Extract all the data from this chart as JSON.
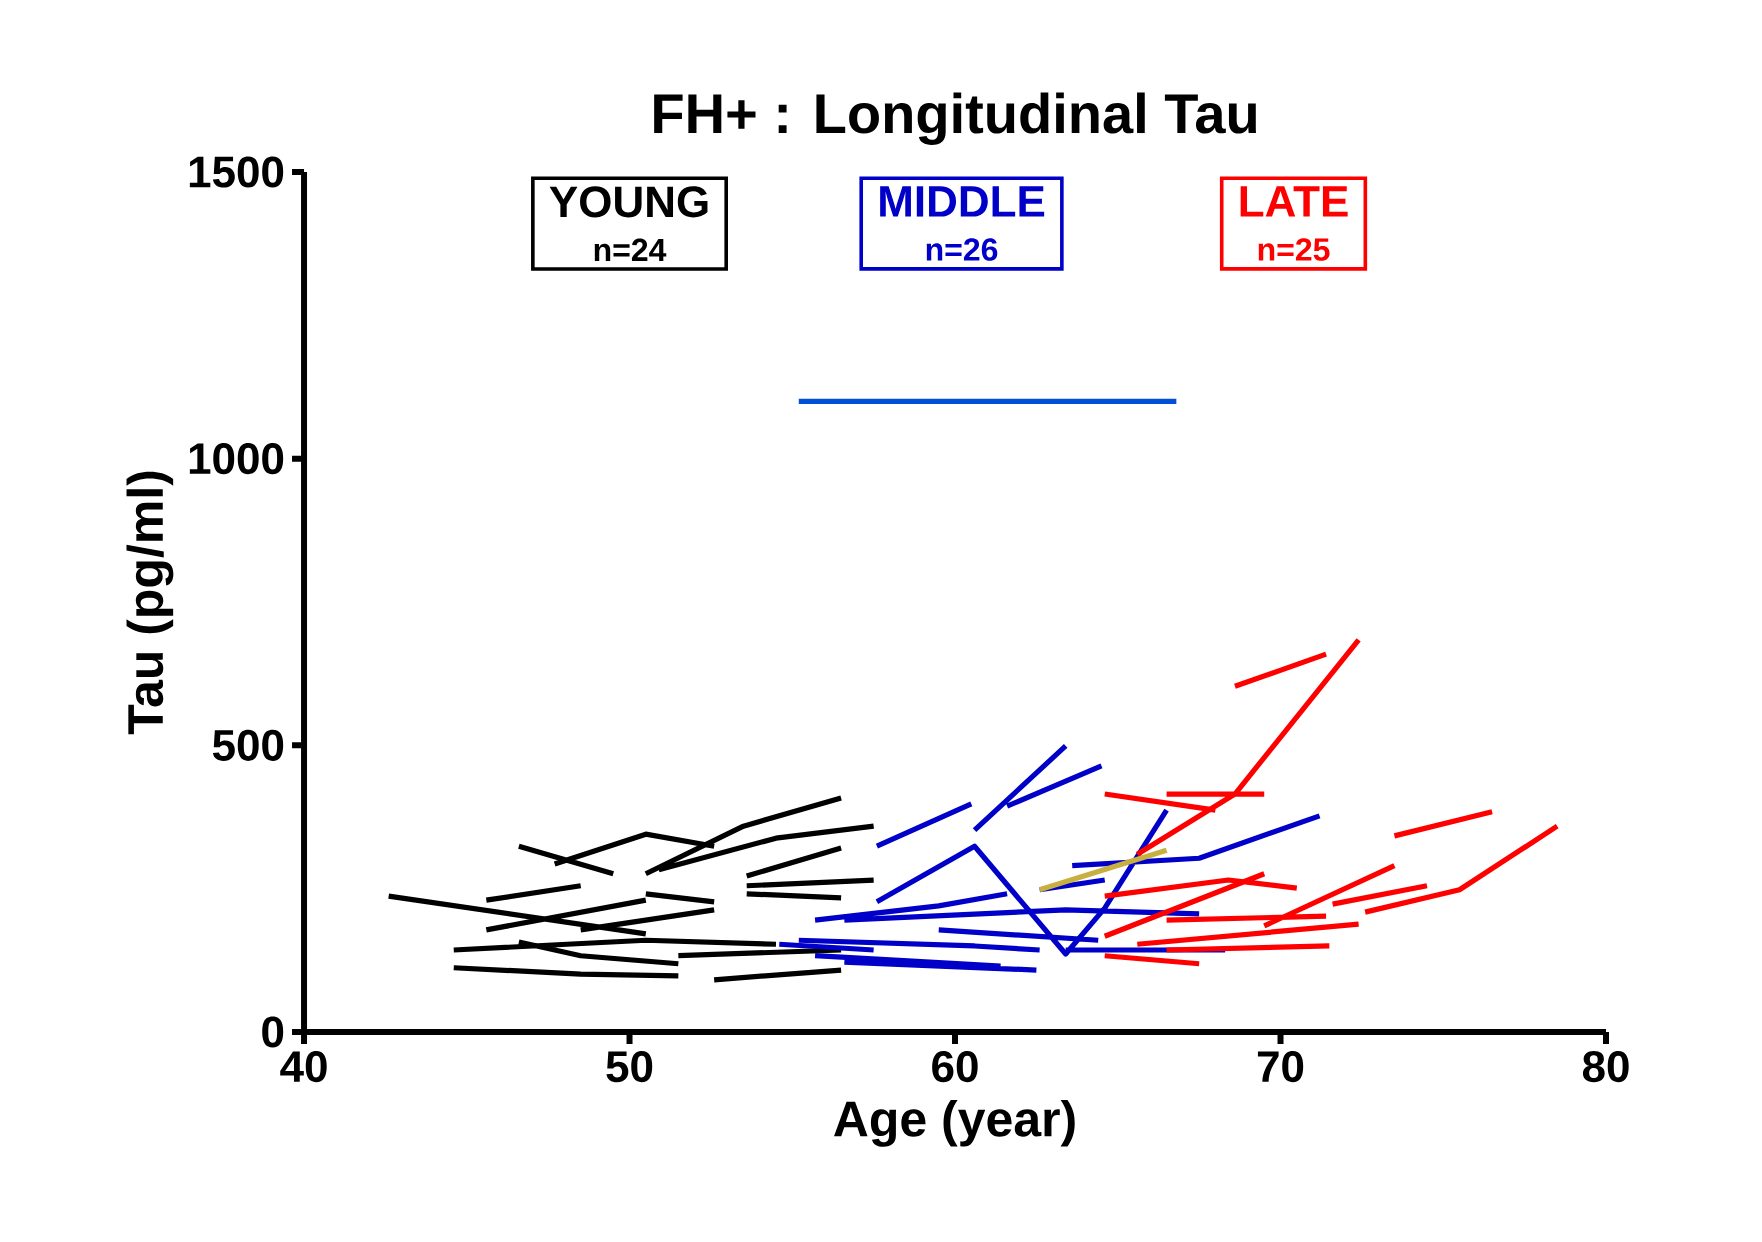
{
  "chart_data": {
    "type": "line",
    "title": "FH+ : Longitudinal Tau",
    "xlabel": "Age (year)",
    "ylabel": "Tau (pg/ml)",
    "xlim": [
      40,
      80
    ],
    "ylim": [
      0,
      1500
    ],
    "xticks": [
      40,
      50,
      60,
      70,
      80
    ],
    "yticks": [
      0,
      500,
      1000,
      1500
    ],
    "grid": false,
    "marker": "none",
    "line_style": "solid",
    "annotations": [
      "n=24",
      "n=26",
      "n=25"
    ],
    "series": [
      {
        "name": "YOUNG",
        "color": "#000000",
        "x": [
          42.6,
          50.5,
          null,
          46.6,
          49.5,
          null,
          47.7,
          50.5,
          52.6,
          null,
          50.5,
          53.5,
          56.5,
          null,
          50.9,
          54.5,
          57.5,
          null,
          45.6,
          48.5,
          null,
          50.5,
          52.6,
          null,
          53.6,
          56.5,
          null,
          53.6,
          57.5,
          null,
          45.6,
          50.5,
          null,
          48.5,
          52.6,
          null,
          44.6,
          50.5,
          54.5,
          null,
          44.6,
          48.5,
          51.5,
          null,
          46.6,
          48.5,
          51.5,
          null,
          51.5,
          56.5,
          null,
          52.6,
          56.5
        ],
        "values": [
          237,
          171,
          null,
          324,
          276,
          null,
          293,
          345,
          324,
          null,
          276,
          359,
          408,
          null,
          283,
          338,
          359,
          null,
          230,
          255,
          null,
          241,
          227,
          null,
          241,
          234,
          null,
          255,
          265,
          null,
          178,
          230,
          null,
          178,
          213,
          null,
          143,
          160,
          153,
          null,
          112,
          101,
          98,
          null,
          157,
          133,
          119,
          null,
          133,
          143,
          null,
          91,
          108
        ]
      },
      {
        "name": "MIDDLE",
        "color": "#0000c8",
        "x": [
          57.6,
          60.5,
          null,
          60.6,
          63.4,
          null,
          61.6,
          64.5,
          null,
          57.6,
          60.6,
          62.0,
          63.4,
          64.6,
          66.5,
          null,
          63.6,
          67.5,
          71.2,
          null,
          55.7,
          59.5,
          61.6,
          null,
          62.6,
          64.6,
          null,
          55.2,
          60.6,
          62.6,
          null,
          56.6,
          63.4,
          67.5,
          null,
          55.7,
          61.4,
          null,
          59.5,
          64.4,
          null,
          56.6,
          62.5,
          null,
          63.4,
          68.3,
          null,
          54.6,
          57.5
        ],
        "values": [
          324,
          398,
          null,
          352,
          499,
          null,
          394,
          464,
          null,
          227,
          324,
          230,
          136,
          216,
          387,
          null,
          290,
          303,
          377,
          null,
          195,
          220,
          241,
          null,
          248,
          265,
          null,
          160,
          150,
          143,
          null,
          195,
          213,
          206,
          null,
          133,
          115,
          null,
          178,
          160,
          null,
          122,
          108,
          null,
          143,
          143,
          null,
          153,
          143
        ]
      },
      {
        "name": "LATE",
        "color": "#ff0000",
        "x": [
          68.6,
          71.4,
          null,
          65.6,
          68.6,
          72.4,
          null,
          64.6,
          68.0,
          null,
          66.5,
          69.5,
          null,
          73.5,
          76.5,
          null,
          72.6,
          75.5,
          78.5,
          null,
          71.6,
          74.5,
          null,
          69.5,
          73.5,
          null,
          64.6,
          68.4,
          70.5,
          null,
          64.6,
          69.5,
          null,
          65.6,
          72.4,
          null,
          64.6,
          67.5,
          null,
          66.5,
          71.5,
          null,
          66.5,
          71.4
        ],
        "values": [
          603,
          659,
          null,
          310,
          415,
          684,
          null,
          415,
          387,
          null,
          415,
          415,
          null,
          342,
          384,
          null,
          209,
          248,
          359,
          null,
          223,
          255,
          null,
          185,
          290,
          null,
          237,
          265,
          251,
          null,
          167,
          276,
          null,
          153,
          188,
          null,
          133,
          119,
          null,
          143,
          150,
          null,
          195,
          202
        ]
      },
      {
        "color": "#000000",
        "x": [
          53.6,
          56.5
        ],
        "values": [
          272,
          321
        ]
      },
      {
        "color": "#c8b040",
        "x": [
          62.6,
          66.5
        ],
        "values": [
          248,
          317
        ]
      },
      {
        "color": "#0050d8",
        "x": [
          55.2,
          66.8
        ],
        "values": [
          1100,
          1100
        ]
      }
    ]
  }
}
